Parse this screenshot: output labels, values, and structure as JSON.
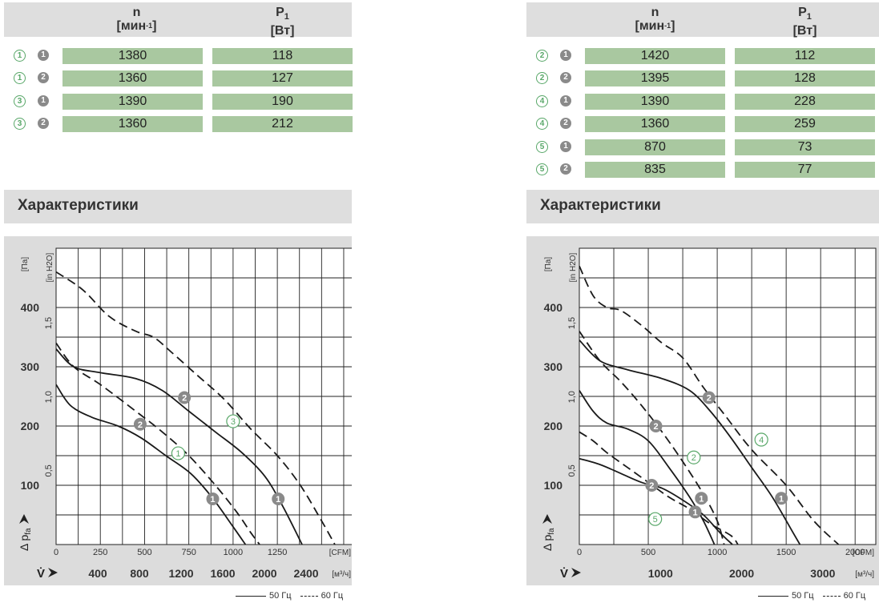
{
  "header": {
    "n_label": "n",
    "n_unit": "[мин",
    "n_unit_sup": "-1",
    "n_unit_close": "]",
    "p_label": "P",
    "p_sub": "1",
    "p_unit": "[Вт]"
  },
  "left_table": [
    {
      "curve": "1",
      "mode": "1",
      "n": "1380",
      "p": "118"
    },
    {
      "curve": "1",
      "mode": "2",
      "n": "1360",
      "p": "127"
    },
    {
      "curve": "3",
      "mode": "1",
      "n": "1390",
      "p": "190"
    },
    {
      "curve": "3",
      "mode": "2",
      "n": "1360",
      "p": "212"
    }
  ],
  "right_table": [
    {
      "curve": "2",
      "mode": "1",
      "n": "1420",
      "p": "112"
    },
    {
      "curve": "2",
      "mode": "2",
      "n": "1395",
      "p": "128"
    },
    {
      "curve": "4",
      "mode": "1",
      "n": "1390",
      "p": "228"
    },
    {
      "curve": "4",
      "mode": "2",
      "n": "1360",
      "p": "259"
    },
    {
      "curve": "5",
      "mode": "1",
      "n": "870",
      "p": "73"
    },
    {
      "curve": "5",
      "mode": "2",
      "n": "835",
      "p": "77"
    }
  ],
  "section_title": "Характеристики",
  "legend": {
    "solid": "50 Гц",
    "dashed": "60 Гц"
  },
  "colors": {
    "grid": "#222222",
    "panel": "#dcdcdc",
    "plot_bg": "#ffffff",
    "row_fill": "#a9c8a0",
    "header_fill": "#dedede",
    "open_marker": "#58a768",
    "filled_marker": "#8a8a8a"
  },
  "chart_data": [
    {
      "type": "line",
      "title": "",
      "xlabel": "V̇",
      "ylabel": "Δ p",
      "ylabel_sub": "fa",
      "y_unit": "[Па]",
      "y2_unit": "[in H",
      "y2_unit_sub": "2",
      "y2_unit_close": "O]",
      "x_unit": "[CFM]",
      "x2_unit": "[м³/ч]",
      "xlim": [
        0,
        1675
      ],
      "ylim": [
        0,
        500
      ],
      "x_ticks": [
        "0",
        "250",
        "500",
        "750",
        "1000",
        "1250"
      ],
      "x_tick_values": [
        0,
        250,
        500,
        750,
        1000,
        1250
      ],
      "x2_ticks": [
        "400",
        "800",
        "1200",
        "1600",
        "2000",
        "2400"
      ],
      "x2_tick_values_cfm": [
        235.4,
        470.9,
        706.3,
        941.7,
        1177.2,
        1412.6
      ],
      "y_ticks": [
        "100",
        "200",
        "300",
        "400"
      ],
      "y_tick_values": [
        100,
        200,
        300,
        400
      ],
      "y2_ticks": [
        "0,5",
        "1,0",
        "1,5"
      ],
      "y2_tick_values_pa": [
        124.5,
        249,
        373.6
      ],
      "grid": true,
      "grid_x_step": 125,
      "grid_y_step": 50,
      "series": [
        {
          "curve": "1",
          "mode": "1",
          "style": "solid",
          "points": [
            [
              0,
              270
            ],
            [
              80,
              235
            ],
            [
              200,
              215
            ],
            [
              350,
              200
            ],
            [
              480,
              180
            ],
            [
              620,
              150
            ],
            [
              760,
              120
            ],
            [
              880,
              80
            ],
            [
              1000,
              30
            ],
            [
              1070,
              0
            ]
          ]
        },
        {
          "curve": "1",
          "mode": "2",
          "style": "dashed",
          "points": [
            [
              0,
              340
            ],
            [
              100,
              300
            ],
            [
              250,
              270
            ],
            [
              450,
              225
            ],
            [
              600,
              190
            ],
            [
              750,
              150
            ],
            [
              900,
              100
            ],
            [
              1020,
              55
            ],
            [
              1100,
              20
            ],
            [
              1150,
              0
            ]
          ]
        },
        {
          "curve": "3",
          "mode": "1",
          "style": "solid",
          "points": [
            [
              0,
              330
            ],
            [
              100,
              300
            ],
            [
              250,
              290
            ],
            [
              450,
              280
            ],
            [
              600,
              260
            ],
            [
              750,
              225
            ],
            [
              900,
              190
            ],
            [
              1050,
              155
            ],
            [
              1180,
              115
            ],
            [
              1280,
              65
            ],
            [
              1390,
              0
            ]
          ]
        },
        {
          "curve": "3",
          "mode": "2",
          "style": "dashed",
          "points": [
            [
              0,
              460
            ],
            [
              150,
              430
            ],
            [
              300,
              385
            ],
            [
              450,
              360
            ],
            [
              550,
              350
            ],
            [
              650,
              325
            ],
            [
              800,
              285
            ],
            [
              950,
              245
            ],
            [
              1100,
              195
            ],
            [
              1250,
              150
            ],
            [
              1380,
              100
            ],
            [
              1500,
              40
            ],
            [
              1575,
              0
            ]
          ]
        }
      ],
      "markers": [
        {
          "label": "2",
          "kind": "filled",
          "x": 725,
          "y": 248
        },
        {
          "label": "3",
          "kind": "open",
          "x": 1000,
          "y": 208
        },
        {
          "label": "2",
          "kind": "filled",
          "x": 475,
          "y": 203
        },
        {
          "label": "1",
          "kind": "open",
          "x": 690,
          "y": 154
        },
        {
          "label": "1",
          "kind": "filled",
          "x": 885,
          "y": 77
        },
        {
          "label": "1",
          "kind": "filled",
          "x": 1255,
          "y": 77
        }
      ]
    },
    {
      "type": "line",
      "title": "",
      "xlabel": "V̇",
      "ylabel": "Δ p",
      "ylabel_sub": "fa",
      "y_unit": "[Па]",
      "y2_unit": "[in H",
      "y2_unit_sub": "2",
      "y2_unit_close": "O]",
      "x_unit": "[CFM]",
      "x2_unit": "[м³/ч]",
      "xlim": [
        0,
        2150
      ],
      "ylim": [
        0,
        500
      ],
      "x_ticks": [
        "0",
        "500",
        "1000",
        "1500",
        "2000"
      ],
      "x_tick_values": [
        0,
        500,
        1000,
        1500,
        2000
      ],
      "x2_ticks": [
        "1000",
        "2000",
        "3000"
      ],
      "x2_tick_values_cfm": [
        588.6,
        1177.2,
        1765.7
      ],
      "y_ticks": [
        "100",
        "200",
        "300",
        "400"
      ],
      "y_tick_values": [
        100,
        200,
        300,
        400
      ],
      "y2_ticks": [
        "0,5",
        "1,0",
        "1,5"
      ],
      "y2_tick_values_pa": [
        124.5,
        249,
        373.6
      ],
      "grid": true,
      "grid_x_step": 250,
      "grid_y_step": 50,
      "series": [
        {
          "curve": "2",
          "mode": "1",
          "style": "solid",
          "points": [
            [
              0,
              260
            ],
            [
              100,
              225
            ],
            [
              200,
              205
            ],
            [
              350,
              195
            ],
            [
              500,
              175
            ],
            [
              650,
              130
            ],
            [
              800,
              80
            ],
            [
              900,
              40
            ],
            [
              980,
              0
            ]
          ]
        },
        {
          "curve": "2",
          "mode": "2",
          "style": "dashed",
          "points": [
            [
              0,
              360
            ],
            [
              150,
              310
            ],
            [
              300,
              275
            ],
            [
              450,
              235
            ],
            [
              600,
              190
            ],
            [
              750,
              140
            ],
            [
              900,
              85
            ],
            [
              1000,
              40
            ],
            [
              1050,
              0
            ]
          ]
        },
        {
          "curve": "4",
          "mode": "1",
          "style": "solid",
          "points": [
            [
              0,
              345
            ],
            [
              150,
              310
            ],
            [
              350,
              295
            ],
            [
              600,
              280
            ],
            [
              800,
              260
            ],
            [
              950,
              225
            ],
            [
              1100,
              180
            ],
            [
              1250,
              130
            ],
            [
              1400,
              80
            ],
            [
              1550,
              20
            ],
            [
              1600,
              0
            ]
          ]
        },
        {
          "curve": "4",
          "mode": "2",
          "style": "dashed",
          "points": [
            [
              0,
              470
            ],
            [
              100,
              420
            ],
            [
              200,
              400
            ],
            [
              300,
              395
            ],
            [
              450,
              370
            ],
            [
              600,
              340
            ],
            [
              750,
              315
            ],
            [
              900,
              265
            ],
            [
              1050,
              220
            ],
            [
              1250,
              160
            ],
            [
              1500,
              100
            ],
            [
              1700,
              40
            ],
            [
              1880,
              0
            ]
          ]
        },
        {
          "curve": "5",
          "mode": "1",
          "style": "solid",
          "points": [
            [
              0,
              145
            ],
            [
              150,
              135
            ],
            [
              300,
              120
            ],
            [
              450,
              105
            ],
            [
              600,
              95
            ],
            [
              750,
              75
            ],
            [
              900,
              50
            ],
            [
              1020,
              20
            ],
            [
              1110,
              0
            ]
          ]
        },
        {
          "curve": "5",
          "mode": "2",
          "style": "dashed",
          "points": [
            [
              0,
              190
            ],
            [
              100,
              175
            ],
            [
              200,
              155
            ],
            [
              350,
              130
            ],
            [
              500,
              105
            ],
            [
              650,
              80
            ],
            [
              800,
              60
            ],
            [
              950,
              35
            ],
            [
              1100,
              15
            ],
            [
              1150,
              0
            ]
          ]
        }
      ],
      "markers": [
        {
          "label": "2",
          "kind": "filled",
          "x": 940,
          "y": 248
        },
        {
          "label": "2",
          "kind": "filled",
          "x": 555,
          "y": 200
        },
        {
          "label": "2",
          "kind": "open",
          "x": 830,
          "y": 147
        },
        {
          "label": "4",
          "kind": "open",
          "x": 1320,
          "y": 177
        },
        {
          "label": "2",
          "kind": "filled",
          "x": 525,
          "y": 100
        },
        {
          "label": "1",
          "kind": "filled",
          "x": 885,
          "y": 78
        },
        {
          "label": "1",
          "kind": "filled",
          "x": 1465,
          "y": 78
        },
        {
          "label": "1",
          "kind": "filled",
          "x": 840,
          "y": 55
        },
        {
          "label": "5",
          "kind": "open",
          "x": 550,
          "y": 43
        }
      ]
    }
  ]
}
